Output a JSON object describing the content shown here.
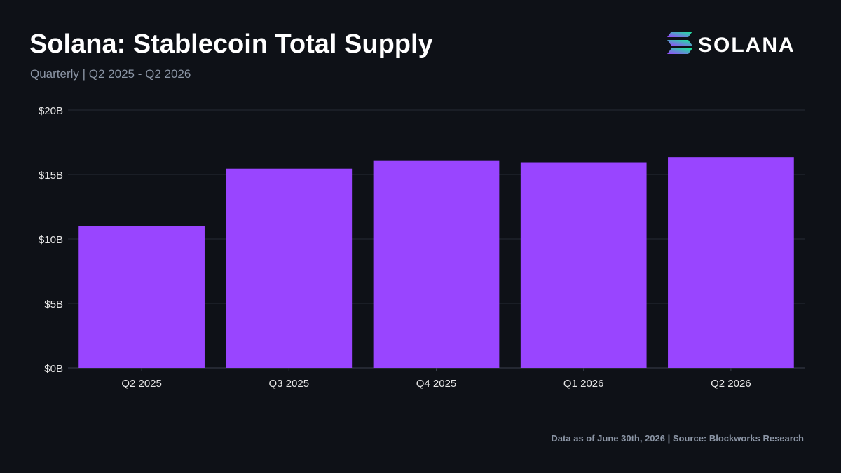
{
  "title": "Solana: Stablecoin Total Supply",
  "subtitle": "Quarterly | Q2 2025 - Q2 2026",
  "brand": {
    "logo_text": "SOLANA",
    "gradient": [
      "#9945ff",
      "#14f195"
    ]
  },
  "footer": "Data as of June 30th, 2026 | Source: Blockworks Research",
  "colors": {
    "background": "#0e1117",
    "bar": "#9945ff",
    "grid": "#262b36",
    "tick_text": "#e6e6e6",
    "muted_text": "#8b95a5"
  },
  "chart_data": {
    "type": "bar",
    "title": "Solana: Stablecoin Total Supply",
    "subtitle": "Quarterly | Q2 2025 - Q2 2026",
    "categories": [
      "Q2 2025",
      "Q3 2025",
      "Q4 2025",
      "Q1 2026",
      "Q2 2026"
    ],
    "values": [
      11.0,
      15.45,
      16.05,
      15.95,
      16.35
    ],
    "unit": "USD billions",
    "ylim": [
      0,
      20
    ],
    "yticks": [
      0,
      5,
      10,
      15,
      20
    ],
    "ytick_labels": [
      "$0B",
      "$5B",
      "$10B",
      "$15B",
      "$20B"
    ],
    "xlabel": "",
    "ylabel": "",
    "grid": true,
    "legend": false
  }
}
